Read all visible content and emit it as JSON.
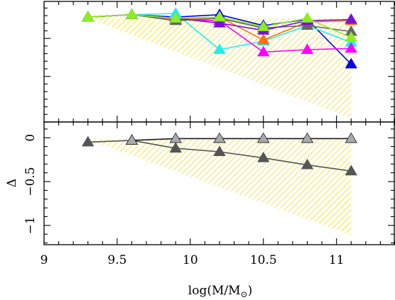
{
  "chart_data": [
    {
      "type": "line",
      "panel": "top",
      "xlim": [
        9,
        11.4
      ],
      "ylim": [
        0,
        1
      ],
      "ylabel": "",
      "show_y_tick_labels": false,
      "x_major_ticks": [
        9,
        9.5,
        10,
        10.5,
        11
      ],
      "x_minor_step": 0.1,
      "y_major_ticks": [
        0.38,
        0.7
      ],
      "y_minor_step": 0.063,
      "shaded_region": {
        "color": "#f0e010",
        "x": [
          9.3,
          11.1,
          11.1,
          9.3
        ],
        "y": [
          0.86,
          0.86,
          0.03,
          0.86
        ]
      },
      "series": [
        {
          "color": "#0000ee",
          "x": [
            9.3,
            9.6,
            9.9,
            10.2,
            10.5,
            10.8,
            11.1
          ],
          "y": [
            0.87,
            0.89,
            0.87,
            0.89,
            0.8,
            0.85,
            0.48
          ]
        },
        {
          "color": "#22eeee",
          "x": [
            9.3,
            9.6,
            9.9,
            10.2,
            10.5,
            10.8,
            11.1
          ],
          "y": [
            0.87,
            0.89,
            0.9,
            0.6,
            0.67,
            0.8,
            0.66
          ]
        },
        {
          "color": "#ff00ff",
          "x": [
            9.3,
            9.6,
            9.9,
            10.2,
            10.5,
            10.8,
            11.1
          ],
          "y": [
            0.87,
            0.89,
            0.85,
            0.84,
            0.58,
            0.6,
            0.61
          ]
        },
        {
          "color": "#ff6e10",
          "x": [
            9.3,
            9.6,
            9.9,
            10.2,
            10.5,
            10.8,
            11.1
          ],
          "y": [
            0.87,
            0.89,
            0.85,
            0.87,
            0.68,
            0.83,
            0.84
          ]
        },
        {
          "color": "#666666",
          "x": [
            9.3,
            9.6,
            9.9,
            10.2,
            10.5,
            10.8,
            11.1
          ],
          "y": [
            0.87,
            0.89,
            0.84,
            0.86,
            0.78,
            0.8,
            0.75
          ]
        },
        {
          "color": "#7b10d8",
          "x": [
            9.3,
            9.6,
            9.9,
            10.2,
            10.5,
            10.8,
            11.1
          ],
          "y": [
            0.87,
            0.89,
            0.86,
            0.82,
            0.76,
            0.84,
            0.85
          ]
        },
        {
          "color": "#8aee20",
          "x": [
            9.3,
            9.6,
            9.9,
            10.2,
            10.5,
            10.8,
            11.1
          ],
          "y": [
            0.87,
            0.89,
            0.86,
            0.87,
            0.79,
            0.86,
            0.7
          ]
        }
      ]
    },
    {
      "type": "line",
      "panel": "bottom",
      "xlim": [
        9,
        11.4
      ],
      "ylim": [
        -1.22,
        0.18
      ],
      "ylabel": "Δ",
      "xlabel_main": "log(M/M",
      "xlabel_sub": "⊙",
      "xlabel_close": ")",
      "x_major_ticks": [
        9,
        9.5,
        10,
        10.5,
        11
      ],
      "x_tick_labels": [
        "9",
        "9.5",
        "10",
        "10.5",
        "11"
      ],
      "x_minor_step": 0.1,
      "y_major_ticks": [
        0,
        -0.5,
        -1
      ],
      "y_tick_labels": [
        "0",
        "−0.5",
        "−1"
      ],
      "y_minor_step": 0.1,
      "shaded_region": {
        "color": "#f0e010",
        "x": [
          9.3,
          11.1,
          11.1,
          9.3
        ],
        "y": [
          -0.02,
          -0.02,
          -1.11,
          -0.02
        ]
      },
      "series": [
        {
          "color": "#555555",
          "x": [
            9.3,
            9.6,
            9.9,
            10.2,
            10.5,
            10.8,
            11.1
          ],
          "y": [
            -0.05,
            -0.03,
            -0.12,
            -0.16,
            -0.23,
            -0.31,
            -0.38
          ]
        },
        {
          "color": "#1a1a1a",
          "marker_color": "#aaaaaa",
          "x": [
            9.6,
            9.9,
            10.2,
            10.5,
            10.8,
            11.1
          ],
          "y": [
            -0.03,
            -0.01,
            -0.01,
            -0.01,
            -0.01,
            -0.01
          ]
        }
      ]
    }
  ]
}
